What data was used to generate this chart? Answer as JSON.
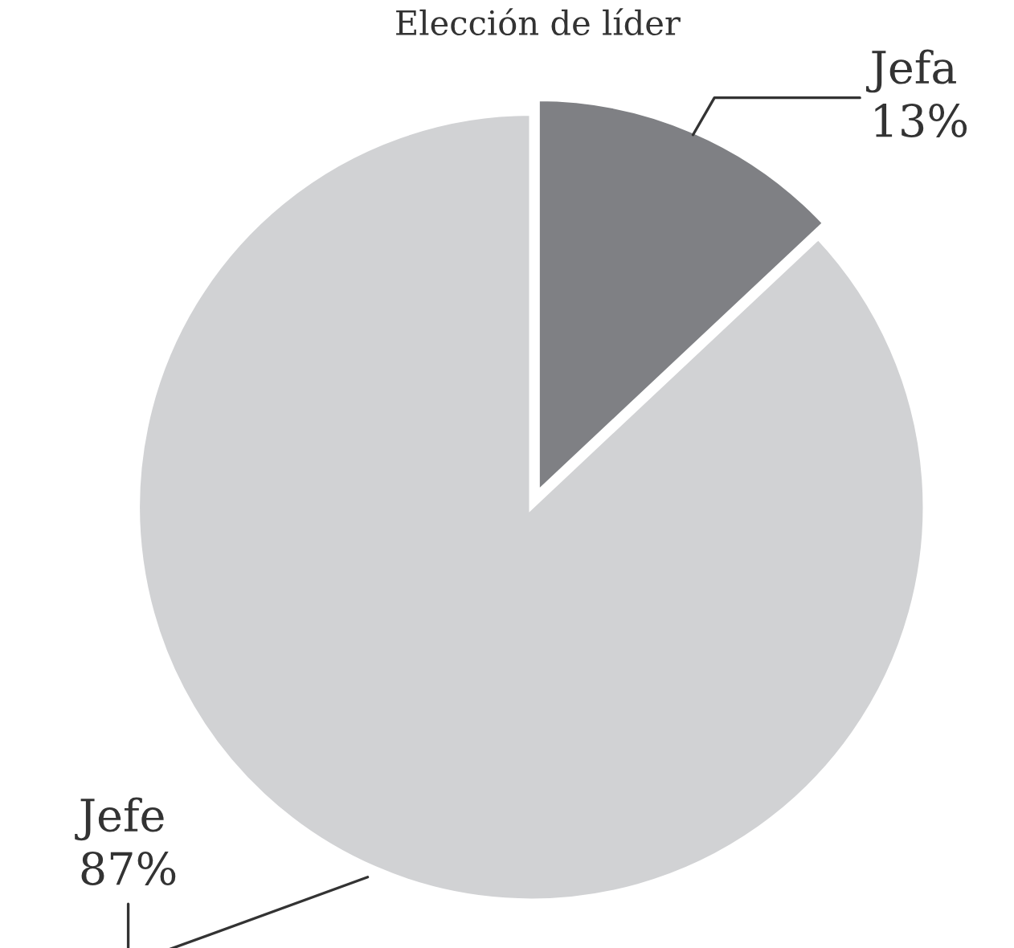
{
  "chart_data": {
    "type": "pie",
    "title": "Elección de líder",
    "categories": [
      "Jefa",
      "Jefe"
    ],
    "values": [
      13,
      87
    ],
    "value_labels": [
      "13%",
      "87%"
    ],
    "colors": [
      "#7f8084",
      "#d1d2d4"
    ],
    "legend": false
  }
}
